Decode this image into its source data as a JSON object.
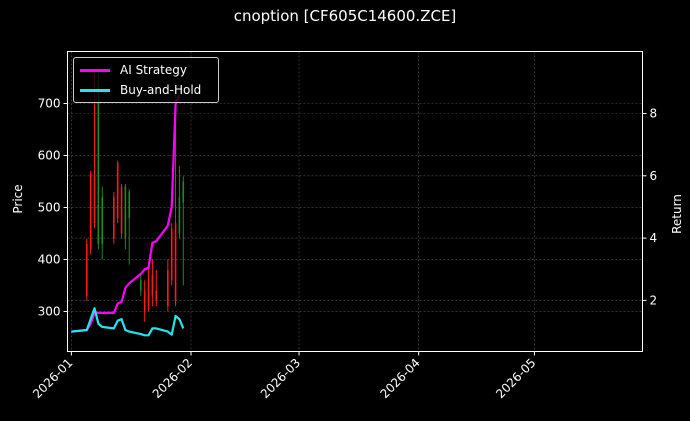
{
  "title": "cnoption [CF605C14600.ZCE]",
  "colors": {
    "background": "#000000",
    "frame": "#ffffff",
    "grid": "#555555",
    "up_candle": "#1f8a1f",
    "down_candle": "#ff1a1a",
    "ai_strategy": "#ff00ff",
    "buy_and_hold": "#22e5f0"
  },
  "legend": {
    "items": [
      {
        "label": "AI Strategy",
        "color": "#ff00ff"
      },
      {
        "label": "Buy-and-Hold",
        "color": "#22e5f0"
      }
    ]
  },
  "chart_data": {
    "type": "line",
    "title": "cnoption [CF605C14600.ZCE]",
    "xlabel": "",
    "ylabel": "Price",
    "ylabel_right": "Return",
    "x_ticks": [
      "2026-01",
      "2026-02",
      "2026-03",
      "2026-04",
      "2026-05"
    ],
    "y_ticks_left": [
      300,
      400,
      500,
      600,
      700
    ],
    "y_ticks_right": [
      2,
      4,
      6,
      8
    ],
    "ylim_left": [
      223,
      800
    ],
    "ylim_right": [
      0.36,
      9.99
    ],
    "xlim": [
      "2025-12-31",
      "2026-05-29"
    ],
    "grid": true,
    "legend_position": "upper left",
    "candles": {
      "description": "daily price bars (red = down, green = up), high-low range",
      "x": [
        "2026-01-05",
        "2026-01-06",
        "2026-01-07",
        "2026-01-08",
        "2026-01-09",
        "2026-01-12",
        "2026-01-13",
        "2026-01-14",
        "2026-01-15",
        "2026-01-16",
        "2026-01-19",
        "2026-01-20",
        "2026-01-21",
        "2026-01-22",
        "2026-01-23",
        "2026-01-26",
        "2026-01-27",
        "2026-01-28",
        "2026-01-29",
        "2026-01-30"
      ],
      "direction": [
        "down",
        "down",
        "down",
        "up",
        "up",
        "down",
        "down",
        "down",
        "up",
        "up",
        "up",
        "down",
        "down",
        "down",
        "down",
        "down",
        "down",
        "down",
        "up",
        "up"
      ],
      "open": [
        430,
        565,
        560,
        430,
        430,
        520,
        585,
        540,
        440,
        480,
        340,
        340,
        360,
        370,
        340,
        380,
        460,
        470,
        450,
        510
      ],
      "close": [
        330,
        420,
        470,
        740,
        520,
        440,
        480,
        450,
        540,
        530,
        360,
        300,
        310,
        330,
        320,
        310,
        360,
        320,
        520,
        550
      ],
      "high": [
        440,
        570,
        760,
        760,
        540,
        530,
        590,
        545,
        545,
        535,
        370,
        360,
        390,
        400,
        380,
        400,
        470,
        720,
        580,
        560
      ],
      "low": [
        320,
        410,
        460,
        420,
        400,
        430,
        470,
        440,
        420,
        390,
        330,
        280,
        300,
        310,
        310,
        300,
        350,
        310,
        440,
        350
      ]
    },
    "series": [
      {
        "name": "AI Strategy",
        "axis": "right",
        "color": "#ff00ff",
        "x": [
          "2026-01-01",
          "2026-01-05",
          "2026-01-06",
          "2026-01-07",
          "2026-01-08",
          "2026-01-09",
          "2026-01-12",
          "2026-01-13",
          "2026-01-14",
          "2026-01-15",
          "2026-01-16",
          "2026-01-19",
          "2026-01-20",
          "2026-01-21",
          "2026-01-22",
          "2026-01-23",
          "2026-01-26",
          "2026-01-27",
          "2026-01-28",
          "2026-01-29"
        ],
        "values": [
          1.0,
          1.05,
          1.25,
          1.6,
          1.6,
          1.6,
          1.6,
          1.9,
          1.95,
          2.4,
          2.55,
          2.85,
          3.0,
          3.05,
          3.85,
          3.9,
          4.4,
          5.0,
          8.3,
          8.6
        ]
      },
      {
        "name": "Buy-and-Hold",
        "axis": "right",
        "color": "#22e5f0",
        "x": [
          "2026-01-01",
          "2026-01-05",
          "2026-01-06",
          "2026-01-07",
          "2026-01-08",
          "2026-01-09",
          "2026-01-12",
          "2026-01-13",
          "2026-01-14",
          "2026-01-15",
          "2026-01-16",
          "2026-01-19",
          "2026-01-20",
          "2026-01-21",
          "2026-01-22",
          "2026-01-23",
          "2026-01-26",
          "2026-01-27",
          "2026-01-28",
          "2026-01-29",
          "2026-01-30"
        ],
        "values": [
          1.0,
          1.05,
          1.4,
          1.75,
          1.25,
          1.15,
          1.1,
          1.35,
          1.4,
          1.05,
          1.0,
          0.92,
          0.88,
          0.88,
          1.1,
          1.1,
          1.0,
          0.9,
          1.5,
          1.4,
          1.1
        ]
      }
    ]
  }
}
